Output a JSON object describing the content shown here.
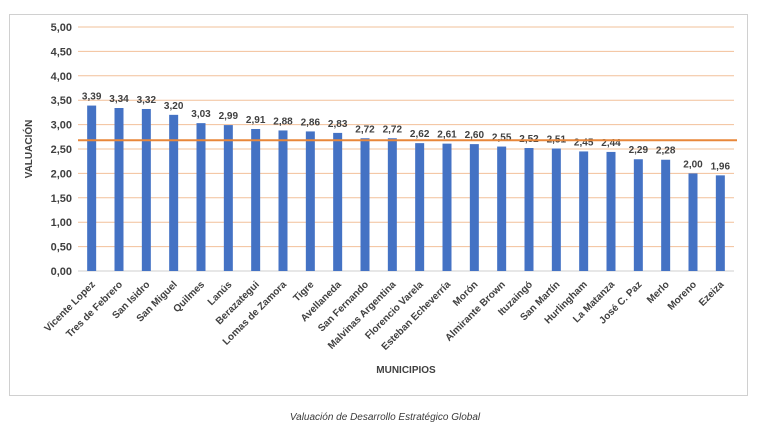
{
  "caption": "Valuación de Desarrollo Estratégico Global",
  "chart_data": {
    "type": "bar",
    "title": "",
    "xlabel": "MUNICIPIOS",
    "ylabel": "VALUACIÓN",
    "ylim": [
      0,
      5
    ],
    "yticks": [
      "0,00",
      "0,50",
      "1,00",
      "1,50",
      "2,00",
      "2,50",
      "3,00",
      "3,50",
      "4,00",
      "4,50",
      "5,00"
    ],
    "grid": true,
    "categories": [
      "Vicente Lopez",
      "Tres de Febrero",
      "San Isidro",
      "San Miguel",
      "Quilmes",
      "Lanús",
      "Berazategui",
      "Lomas de Zamora",
      "Tigre",
      "Avellaneda",
      "San Fernando",
      "Malvinas Argentina",
      "Florencio Varela",
      "Esteban Echeverría",
      "Morón",
      "Almirante Brown",
      "Ituzaingó",
      "San Martín",
      "Hurlingham",
      "La Matanza",
      "José C. Paz",
      "Merlo",
      "Moreno",
      "Ezeiza"
    ],
    "values": [
      3.39,
      3.34,
      3.32,
      3.2,
      3.03,
      2.99,
      2.91,
      2.88,
      2.86,
      2.83,
      2.72,
      2.72,
      2.62,
      2.61,
      2.6,
      2.55,
      2.52,
      2.51,
      2.45,
      2.44,
      2.29,
      2.28,
      2.0,
      1.96
    ],
    "value_labels": [
      "3,39",
      "3,34",
      "3,32",
      "3,20",
      "3,03",
      "2,99",
      "2,91",
      "2,88",
      "2,86",
      "2,83",
      "2,72",
      "2,72",
      "2,62",
      "2,61",
      "2,60",
      "2,55",
      "2,52",
      "2,51",
      "2,45",
      "2,44",
      "2,29",
      "2,28",
      "2,00",
      "1,96"
    ],
    "reference_line": 2.68,
    "colors": {
      "bar": "#4472c4",
      "grid": "#f2c09a",
      "reference": "#e8873a",
      "text": "#404040"
    }
  }
}
